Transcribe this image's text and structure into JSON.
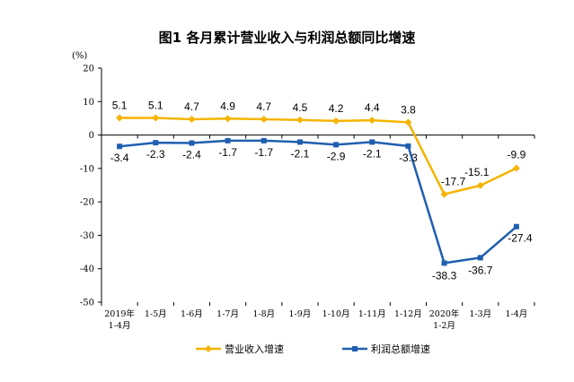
{
  "chart_data": {
    "type": "line",
    "title": "图1  各月累计营业收入与利润总额同比增速",
    "ylabel": "(%)",
    "xlabel": "",
    "ylim": [
      -50,
      20
    ],
    "yticks": [
      20,
      10,
      0,
      -10,
      -20,
      -30,
      -40,
      -50
    ],
    "grid": false,
    "legend": "bottom",
    "categories": [
      [
        "2019年",
        "1-4月"
      ],
      [
        "1-5月"
      ],
      [
        "1-6月"
      ],
      [
        "1-7月"
      ],
      [
        "1-8月"
      ],
      [
        "1-9月"
      ],
      [
        "1-10月"
      ],
      [
        "1-11月"
      ],
      [
        "1-12月"
      ],
      [
        "2020年",
        "1-2月"
      ],
      [
        "1-3月"
      ],
      [
        "1-4月"
      ]
    ],
    "series": [
      {
        "name": "营业收入增速",
        "color": "#F5B400",
        "marker": "diamond",
        "values": [
          5.1,
          5.1,
          4.7,
          4.9,
          4.7,
          4.5,
          4.2,
          4.4,
          3.8,
          -17.7,
          -15.1,
          -9.9
        ],
        "labels": [
          "5.1",
          "5.1",
          "4.7",
          "4.9",
          "4.7",
          "4.5",
          "4.2",
          "4.4",
          "3.8",
          "-17.7",
          "-15.1",
          "-9.9"
        ]
      },
      {
        "name": "利润总额增速",
        "color": "#1F5FAF",
        "marker": "square",
        "values": [
          -3.4,
          -2.3,
          -2.4,
          -1.7,
          -1.7,
          -2.1,
          -2.9,
          -2.1,
          -3.3,
          -38.3,
          -36.7,
          -27.4
        ],
        "labels": [
          "-3.4",
          "-2.3",
          "-2.4",
          "-1.7",
          "-1.7",
          "-2.1",
          "-2.9",
          "-2.1",
          "-3.3",
          "-38.3",
          "-36.7",
          "-27.4"
        ]
      }
    ]
  }
}
